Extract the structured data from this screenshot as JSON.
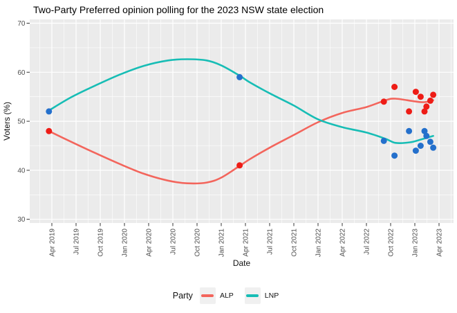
{
  "figure": {
    "title": "Two-Party Preferred opinion polling for the 2023 NSW state election"
  },
  "chart_data": {
    "type": "scatter",
    "subtype": "scatter points with loess smooth lines (ggplot style)",
    "title": "Two-Party Preferred opinion polling for the 2023 NSW state election",
    "xlabel": "Date",
    "ylabel": "Voters (%)",
    "x_unit": "decimal_year",
    "ylim": [
      29.3,
      70.8
    ],
    "y_major_ticks": [
      30,
      40,
      50,
      60,
      70
    ],
    "y_minor_ticks": [
      35,
      45,
      55,
      65
    ],
    "x_ticks": [
      {
        "label": "Apr 2019",
        "x": 2019.25
      },
      {
        "label": "Jul 2019",
        "x": 2019.5
      },
      {
        "label": "Oct 2019",
        "x": 2019.75
      },
      {
        "label": "Jan 2020",
        "x": 2020.0
      },
      {
        "label": "Apr 2020",
        "x": 2020.25
      },
      {
        "label": "Jul 2020",
        "x": 2020.5
      },
      {
        "label": "Oct 2020",
        "x": 2020.75
      },
      {
        "label": "Jan 2021",
        "x": 2021.0
      },
      {
        "label": "Apr 2021",
        "x": 2021.25
      },
      {
        "label": "Jul 2021",
        "x": 2021.5
      },
      {
        "label": "Oct 2021",
        "x": 2021.75
      },
      {
        "label": "Jan 2022",
        "x": 2022.0
      },
      {
        "label": "Apr 2022",
        "x": 2022.25
      },
      {
        "label": "Jul 2022",
        "x": 2022.5
      },
      {
        "label": "Oct 2022",
        "x": 2022.75
      },
      {
        "label": "Jan 2023",
        "x": 2023.0
      },
      {
        "label": "Apr 2023",
        "x": 2023.25
      }
    ],
    "panel": {
      "bg": "#ebebeb",
      "grid_color": "#ffffff",
      "tick_color": "#333333",
      "axis_text_color": "#4d4d4d"
    },
    "legend": {
      "title": "Party",
      "position": "bottom",
      "entries": [
        {
          "label": "ALP",
          "color": "#f3655c"
        },
        {
          "label": "LNP",
          "color": "#17bdb5"
        }
      ]
    },
    "series": [
      {
        "name": "ALP",
        "point_color": "#ee1c16",
        "line_color": "#f3655c",
        "points": [
          [
            2019.22,
            48
          ],
          [
            2021.19,
            41
          ],
          [
            2022.68,
            54
          ],
          [
            2022.79,
            57
          ],
          [
            2022.94,
            52
          ],
          [
            2023.01,
            56
          ],
          [
            2023.06,
            55
          ],
          [
            2023.1,
            52
          ],
          [
            2023.12,
            53
          ],
          [
            2023.16,
            54.2
          ],
          [
            2023.19,
            55.4
          ]
        ],
        "smooth_line": [
          [
            2019.22,
            48.0
          ],
          [
            2019.45,
            45.8
          ],
          [
            2019.7,
            43.5
          ],
          [
            2019.95,
            41.3
          ],
          [
            2020.2,
            39.3
          ],
          [
            2020.45,
            37.9
          ],
          [
            2020.65,
            37.35
          ],
          [
            2020.85,
            37.5
          ],
          [
            2021.0,
            38.5
          ],
          [
            2021.19,
            40.9
          ],
          [
            2021.29,
            42.2
          ],
          [
            2021.5,
            44.6
          ],
          [
            2021.75,
            47.2
          ],
          [
            2022.0,
            49.8
          ],
          [
            2022.25,
            51.7
          ],
          [
            2022.5,
            52.9
          ],
          [
            2022.7,
            54.3
          ],
          [
            2022.8,
            54.6
          ],
          [
            2023.0,
            54.05
          ],
          [
            2023.1,
            53.9
          ],
          [
            2023.19,
            54.3
          ]
        ]
      },
      {
        "name": "LNP",
        "point_color": "#2470cc",
        "line_color": "#17bdb5",
        "points": [
          [
            2019.22,
            52
          ],
          [
            2021.19,
            59
          ],
          [
            2022.68,
            46
          ],
          [
            2022.79,
            43
          ],
          [
            2022.94,
            48
          ],
          [
            2023.01,
            44
          ],
          [
            2023.06,
            45
          ],
          [
            2023.1,
            48
          ],
          [
            2023.12,
            47
          ],
          [
            2023.16,
            45.8
          ],
          [
            2023.19,
            44.6
          ]
        ],
        "smooth_line": [
          [
            2019.22,
            52.2
          ],
          [
            2019.45,
            54.9
          ],
          [
            2019.7,
            57.3
          ],
          [
            2019.95,
            59.5
          ],
          [
            2020.2,
            61.3
          ],
          [
            2020.45,
            62.4
          ],
          [
            2020.65,
            62.65
          ],
          [
            2020.85,
            62.4
          ],
          [
            2021.0,
            61.4
          ],
          [
            2021.19,
            59.3
          ],
          [
            2021.29,
            58.0
          ],
          [
            2021.5,
            55.7
          ],
          [
            2021.75,
            53.2
          ],
          [
            2022.0,
            50.4
          ],
          [
            2022.25,
            48.8
          ],
          [
            2022.5,
            47.7
          ],
          [
            2022.7,
            46.4
          ],
          [
            2022.8,
            45.6
          ],
          [
            2022.95,
            45.7
          ],
          [
            2023.05,
            46.2
          ],
          [
            2023.19,
            47.0
          ]
        ]
      }
    ]
  }
}
